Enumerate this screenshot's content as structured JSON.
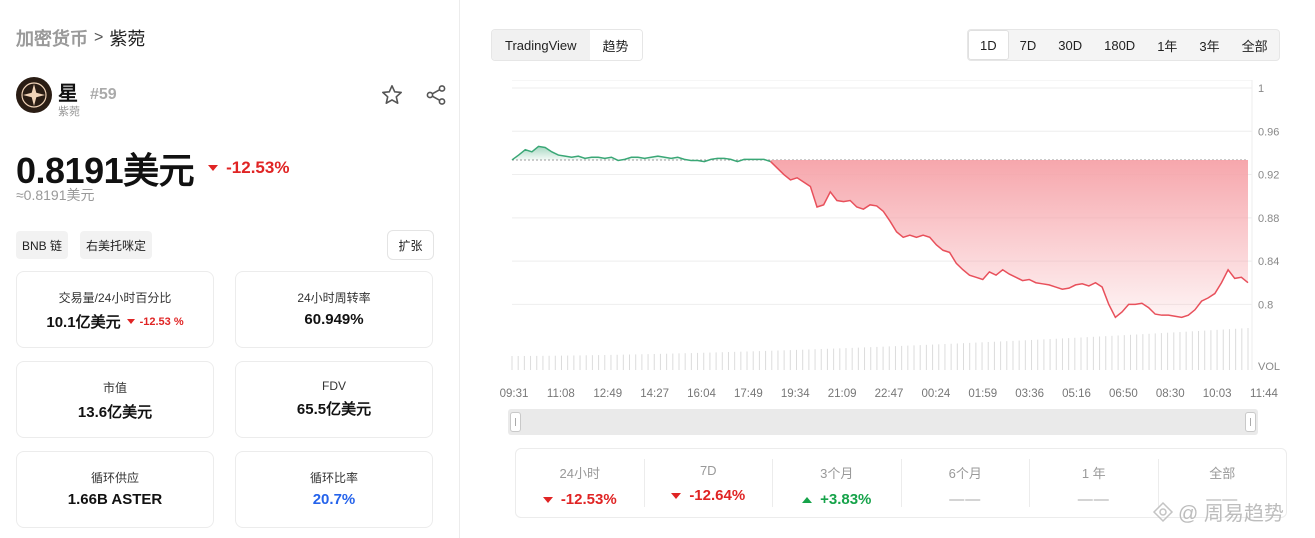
{
  "breadcrumb": {
    "root": "加密货币",
    "separator": ">",
    "current": "紫菀"
  },
  "token": {
    "name": "星",
    "subname": "紫菀",
    "rank": "#59",
    "logo_icon": "star-compass-logo",
    "logo_color": "#2a1d14"
  },
  "price": {
    "value": "0.8191美元",
    "change": "-12.53%",
    "approx": "≈0.8191美元"
  },
  "tags": [
    "BNB 链",
    "右美托咪定"
  ],
  "expand_label": "扩张",
  "stats": {
    "volume": {
      "label": "交易量/24小时百分比",
      "value": "10.1亿美元",
      "change": "-12.53 %"
    },
    "turnover": {
      "label": "24小时周转率",
      "value": "60.949%"
    },
    "market_cap": {
      "label": "市值",
      "value": "13.6亿美元"
    },
    "fdv": {
      "label": "FDV",
      "value": "65.5亿美元"
    },
    "circ_supply": {
      "label": "循环供应",
      "value": "1.66B ASTER"
    },
    "circ_ratio": {
      "label": "循环比率",
      "value": "20.7%"
    }
  },
  "chart_tabs": {
    "tradingview": "TradingView",
    "trend": "趋势",
    "active": "趋势"
  },
  "range_tabs": [
    "1D",
    "7D",
    "30D",
    "180D",
    "1年",
    "3年",
    "全部"
  ],
  "active_range": "1D",
  "chart_data": {
    "type": "area",
    "title": "",
    "xlabel": "",
    "ylabel": "",
    "ylim": [
      0.78,
      1.0
    ],
    "yticks": [
      "1",
      "0.96",
      "0.92",
      "0.88",
      "0.84",
      "0.8"
    ],
    "xticks": [
      "09:31",
      "11:08",
      "12:49",
      "14:27",
      "16:04",
      "17:49",
      "19:34",
      "21:09",
      "22:47",
      "00:24",
      "01:59",
      "03:36",
      "05:16",
      "06:50",
      "08:30",
      "10:03",
      "11:44"
    ],
    "volume_label": "VOL",
    "baseline": 0.9335,
    "colors": {
      "up": "#3aa776",
      "down": "#e8505b",
      "down_fill": "#f6a2a8"
    },
    "series": [
      {
        "values": [
          0.9335,
          0.938,
          0.943,
          0.941,
          0.946,
          0.945,
          0.941,
          0.938,
          0.937,
          0.936,
          0.937,
          0.935,
          0.936,
          0.936,
          0.935,
          0.936,
          0.933,
          0.934,
          0.936,
          0.936,
          0.935,
          0.936,
          0.937,
          0.936,
          0.935,
          0.936,
          0.934,
          0.933,
          0.933,
          0.932,
          0.934,
          0.935,
          0.935,
          0.934,
          0.932,
          0.934,
          0.934,
          0.934,
          0.934,
          0.932,
          0.926,
          0.92,
          0.915,
          0.917,
          0.913,
          0.909,
          0.89,
          0.892,
          0.904,
          0.896,
          0.895,
          0.896,
          0.89,
          0.888,
          0.892,
          0.891,
          0.886,
          0.877,
          0.867,
          0.862,
          0.864,
          0.862,
          0.864,
          0.862,
          0.855,
          0.85,
          0.848,
          0.838,
          0.832,
          0.827,
          0.825,
          0.823,
          0.83,
          0.827,
          0.832,
          0.828,
          0.825,
          0.822,
          0.823,
          0.82,
          0.819,
          0.818,
          0.816,
          0.814,
          0.815,
          0.818,
          0.819,
          0.817,
          0.82,
          0.816,
          0.8,
          0.788,
          0.793,
          0.8,
          0.8,
          0.801,
          0.797,
          0.791,
          0.79,
          0.79,
          0.789,
          0.788,
          0.79,
          0.795,
          0.803,
          0.806,
          0.81,
          0.82,
          0.832,
          0.824,
          0.825,
          0.82
        ]
      }
    ]
  },
  "performance": [
    {
      "label": "24小时",
      "value": "-12.53%",
      "dir": "down"
    },
    {
      "label": "7D",
      "value": "-12.64%",
      "dir": "down"
    },
    {
      "label": "3个月",
      "value": "+3.83%",
      "dir": "up"
    },
    {
      "label": "6个月",
      "value": "——",
      "dir": "none"
    },
    {
      "label": "1 年",
      "value": "——",
      "dir": "none"
    },
    {
      "label": "全部",
      "value": "——",
      "dir": "none"
    }
  ],
  "watermark": "@ 周易趋势"
}
